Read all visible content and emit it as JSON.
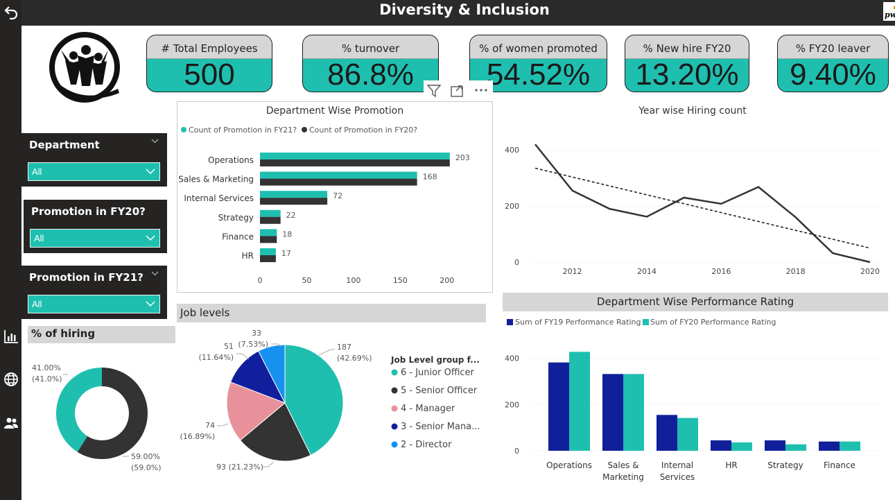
{
  "title": "Diversity & Inclusion",
  "brand_logo_text": "pwc",
  "nav": {
    "back_icon": "back-arrow-icon",
    "items": [
      "bar-chart-icon",
      "globe-icon",
      "people-icon"
    ]
  },
  "kpis": [
    {
      "label": "# Total Employees",
      "value": "500"
    },
    {
      "label": "% turnover",
      "value": "86.8%"
    },
    {
      "label": "% of women promoted",
      "value": "54.52%"
    },
    {
      "label": "% New hire FY20",
      "value": "13.20%"
    },
    {
      "label": "% FY20 leaver",
      "value": "9.40%"
    }
  ],
  "slicers": [
    {
      "label": "Department",
      "value": "All"
    },
    {
      "label": "Promotion in FY20?",
      "value": "All"
    },
    {
      "label": "Promotion in FY21?",
      "value": "All"
    }
  ],
  "colors": {
    "teal": "#1fbfb0",
    "dark": "#333333",
    "navy": "#1a2a9e",
    "pink": "#e8919a",
    "navy2": "#101f9a",
    "blue": "#1890f0"
  },
  "chart_data": [
    {
      "type": "bar",
      "orientation": "horizontal",
      "title": "Department Wise Promotion",
      "categories": [
        "Operations",
        "Sales & Marketing",
        "Internal Services",
        "Strategy",
        "Finance",
        "HR"
      ],
      "series": [
        {
          "name": "Count of Promotion in FY21?",
          "values": [
            203,
            168,
            72,
            22,
            18,
            17
          ]
        },
        {
          "name": "Count of Promotion in FY20?",
          "values": [
            203,
            168,
            72,
            22,
            18,
            17
          ]
        }
      ],
      "data_labels": [
        "203",
        "168",
        "72",
        "22",
        "18",
        "17"
      ],
      "xticks": [
        "0",
        "50",
        "100",
        "150",
        "200"
      ],
      "xlim": [
        0,
        215
      ],
      "legend": "top"
    },
    {
      "type": "line",
      "title": "Year wise Hiring count",
      "x": [
        2011,
        2012,
        2013,
        2014,
        2015,
        2016,
        2017,
        2018,
        2019,
        2020
      ],
      "y": [
        420,
        255,
        190,
        162,
        230,
        208,
        268,
        160,
        32,
        0
      ],
      "trend": [
        [
          2011,
          335
        ],
        [
          2020,
          50
        ]
      ],
      "xticks": [
        "2012",
        "2014",
        "2016",
        "2018",
        "2020"
      ],
      "yticks": [
        "0",
        "200",
        "400"
      ],
      "ylim": [
        0,
        450
      ]
    },
    {
      "type": "pie",
      "subtype": "donut",
      "title": "% of hiring",
      "values": [
        41.0,
        59.0
      ],
      "labels": [
        "41.00%",
        "59.00%"
      ],
      "sub_labels": [
        "(41.0%)",
        "(59.0%)"
      ],
      "colors": [
        "#1fbfb0",
        "#333333"
      ]
    },
    {
      "type": "pie",
      "title": "Job levels",
      "legend_title": "Job Level group f...",
      "slices": [
        {
          "name": "6 - Junior Officer",
          "value": 187,
          "label": "187",
          "pct": "(42.69%)"
        },
        {
          "name": "5 - Senior Officer",
          "value": 93,
          "label": "93 (21.23%)",
          "pct": ""
        },
        {
          "name": "4 - Manager",
          "value": 74,
          "label": "74",
          "pct": "(16.89%)"
        },
        {
          "name": "3 - Senior Mana...",
          "value": 51,
          "label": "51",
          "pct": "(11.64%)"
        },
        {
          "name": "2 - Director",
          "value": 33,
          "label": "33",
          "pct": "(7.53%)"
        }
      ],
      "colors": [
        "#1fbfb0",
        "#333333",
        "#e8919a",
        "#121f9c",
        "#1890f0"
      ],
      "legend": "right"
    },
    {
      "type": "bar",
      "title": "Department Wise Performance Rating",
      "categories": [
        "Operations",
        "Sales & Marketing",
        "Internal Services",
        "HR",
        "Strategy",
        "Finance"
      ],
      "series": [
        {
          "name": "Sum of FY19 Performance Rating",
          "values": [
            382,
            332,
            155,
            45,
            45,
            40
          ]
        },
        {
          "name": "Sum of FY20 Performance Rating",
          "values": [
            428,
            332,
            142,
            36,
            28,
            40
          ]
        }
      ],
      "yticks": [
        "0",
        "200",
        "400"
      ],
      "ylim": [
        0,
        450
      ],
      "legend": "top"
    }
  ]
}
